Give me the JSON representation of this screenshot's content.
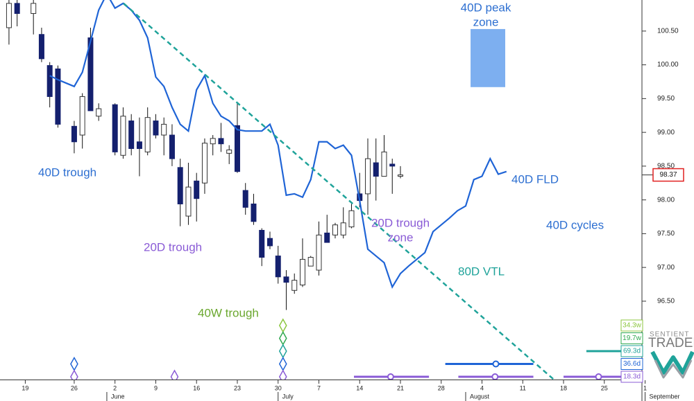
{
  "chart_data": {
    "type": "candlestick",
    "x": [
      0,
      1,
      3,
      4,
      5,
      6,
      8,
      9,
      10,
      11,
      13,
      14,
      15,
      16,
      17,
      18,
      19,
      20,
      21,
      22,
      23,
      24,
      25,
      26,
      27,
      28,
      29,
      30,
      31,
      32,
      33,
      34,
      35,
      36,
      37,
      38,
      39,
      40,
      41,
      42,
      43,
      44,
      45,
      46,
      47,
      48
    ],
    "open": [
      100.55,
      100.91,
      100.76,
      100.45,
      99.99,
      99.94,
      99.09,
      98.96,
      100.4,
      99.24,
      99.41,
      98.66,
      99.17,
      98.86,
      98.71,
      99.17,
      98.96,
      98.96,
      98.48,
      97.76,
      98.28,
      98.25,
      98.83,
      98.91,
      98.69,
      99.1,
      98.14,
      97.94,
      97.55,
      97.43,
      97.17,
      96.86,
      96.66,
      96.74,
      97.02,
      96.96,
      97.51,
      97.48,
      97.48,
      97.6,
      98.09,
      98.09,
      98.55,
      98.35,
      98.53,
      98.35
    ],
    "high": [
      100.96,
      100.96,
      100.96,
      100.55,
      100.04,
      99.99,
      99.17,
      99.58,
      100.55,
      99.43,
      99.43,
      99.37,
      99.27,
      99.22,
      99.37,
      99.27,
      99.22,
      99.12,
      98.61,
      98.55,
      98.4,
      98.91,
      98.96,
      99.14,
      98.81,
      99.43,
      98.25,
      98.09,
      97.58,
      97.53,
      97.32,
      96.96,
      96.91,
      97.43,
      97.17,
      97.68,
      97.78,
      97.66,
      97.89,
      97.94,
      98.4,
      98.91,
      98.91,
      98.96,
      98.61,
      98.5
    ],
    "low": [
      100.3,
      100.57,
      100.45,
      100.04,
      99.37,
      99.07,
      98.69,
      98.76,
      99.32,
      99.17,
      98.66,
      98.61,
      98.66,
      98.35,
      98.66,
      98.91,
      98.66,
      98.5,
      97.61,
      97.63,
      97.68,
      98.09,
      98.66,
      98.71,
      98.53,
      98.4,
      97.78,
      97.63,
      97.02,
      97.27,
      96.76,
      96.37,
      96.61,
      96.71,
      97.02,
      96.88,
      97.37,
      97.43,
      97.43,
      97.58,
      97.89,
      97.78,
      97.99,
      98.35,
      98.09,
      98.32
    ],
    "close": [
      100.91,
      100.76,
      100.91,
      100.09,
      99.53,
      99.12,
      98.86,
      99.53,
      99.32,
      99.35,
      98.71,
      99.24,
      98.76,
      98.76,
      99.22,
      98.96,
      99.12,
      98.61,
      97.94,
      98.19,
      98.02,
      98.84,
      98.91,
      98.83,
      98.74,
      98.42,
      97.89,
      97.68,
      97.15,
      97.32,
      96.86,
      96.78,
      96.81,
      97.12,
      97.15,
      97.48,
      97.37,
      97.63,
      97.66,
      97.84,
      97.99,
      98.61,
      98.35,
      98.71,
      98.5,
      98.37
    ],
    "up_color": "#ffffff",
    "down_color": "#14206e",
    "xlim": [
      -1.1,
      78.04
    ],
    "ylim": [
      95.34,
      100.96
    ],
    "yticks": [
      {
        "value": 96.5,
        "label": "96.50"
      },
      {
        "value": 97,
        "label": "97.00"
      },
      {
        "value": 97.5,
        "label": "97.50"
      },
      {
        "value": 98,
        "label": "98.00"
      },
      {
        "value": 98.5,
        "label": "98.50"
      },
      {
        "value": 99,
        "label": "99.00"
      },
      {
        "value": 99.5,
        "label": "99.50"
      },
      {
        "value": 100,
        "label": "100.00"
      },
      {
        "value": 100.5,
        "label": "100.50"
      }
    ],
    "xticks": [
      {
        "value": 2,
        "label": "19"
      },
      {
        "value": 8,
        "label": "26"
      },
      {
        "value": 13,
        "label": "2"
      },
      {
        "value": 18,
        "label": "9"
      },
      {
        "value": 23,
        "label": "16"
      },
      {
        "value": 28,
        "label": "23"
      },
      {
        "value": 33,
        "label": "30"
      },
      {
        "value": 38,
        "label": "7"
      },
      {
        "value": 43,
        "label": "14"
      },
      {
        "value": 48,
        "label": "21"
      },
      {
        "value": 53,
        "label": "28"
      },
      {
        "value": 58,
        "label": "4"
      },
      {
        "value": 63,
        "label": "11"
      },
      {
        "value": 68,
        "label": "18"
      },
      {
        "value": 73,
        "label": "25"
      },
      {
        "value": 78,
        "label": "1"
      }
    ],
    "month_ticks": [
      {
        "value": 12,
        "label": "June"
      },
      {
        "value": 33,
        "label": "July"
      },
      {
        "value": 56,
        "label": "August"
      },
      {
        "value": 78,
        "label": "September"
      }
    ],
    "grid": false,
    "last_price": 98.37,
    "last_price_color": "#e02020",
    "lines": [
      {
        "color": "#1f64d6",
        "dash": false,
        "x": [
          5,
          6,
          7,
          8,
          9,
          10,
          11,
          12,
          13,
          14,
          15,
          16,
          17,
          18,
          19,
          20,
          21,
          22,
          23,
          24,
          25,
          26,
          27,
          28,
          29,
          30,
          31,
          32,
          33,
          34,
          35,
          36,
          37,
          38,
          39,
          40,
          41,
          42,
          43,
          44,
          45,
          46,
          47,
          48,
          49,
          50,
          51,
          52,
          53,
          54,
          55,
          56,
          57,
          58,
          59,
          60,
          61
        ],
        "values": [
          99.84,
          99.78,
          99.73,
          99.68,
          99.89,
          100.35,
          100.81,
          101.05,
          100.84,
          100.91,
          100.81,
          100.66,
          100.4,
          99.82,
          99.68,
          99.37,
          99.12,
          99.02,
          99.63,
          99.84,
          99.43,
          99.24,
          99.17,
          99.04,
          99.02,
          99.02,
          99.02,
          99.12,
          98.81,
          98.07,
          98.09,
          98.04,
          98.3,
          98.86,
          98.86,
          98.76,
          98.81,
          98.66,
          97.99,
          97.27,
          97.17,
          97.07,
          96.71,
          96.91,
          97.02,
          97.12,
          97.22,
          97.53,
          97.63,
          97.73,
          97.84,
          97.91,
          98.3,
          98.35,
          98.61,
          98.38,
          98.42
        ]
      },
      {
        "color": "#1fa39a",
        "dash": true,
        "x": [
          14.05,
          67
        ],
        "values": [
          100.91,
          95.32
        ]
      }
    ],
    "zone": {
      "color": "#6fa6ee",
      "x": [
        56.6,
        60.85
      ],
      "values": [
        99.67,
        100.53
      ]
    },
    "annotations": [
      {
        "lines": [
          "40D trough"
        ],
        "color": "#2d6fd1"
      },
      {
        "lines": [
          "20D trough"
        ],
        "color": "#8a5bd6"
      },
      {
        "lines": [
          "40W trough"
        ],
        "color": "#6aa72e"
      },
      {
        "lines": [
          "40D peak",
          "zone"
        ],
        "color": "#2d6fd1"
      },
      {
        "lines": [
          "20D trough",
          "zone"
        ],
        "color": "#8a5bd6"
      },
      {
        "lines": [
          "40D FLD"
        ],
        "color": "#2d6fd1"
      },
      {
        "lines": [
          "40D cycles"
        ],
        "color": "#2d6fd1"
      },
      {
        "lines": [
          "80D VTL"
        ],
        "color": "#1fa39a"
      }
    ],
    "cycle_labels": [
      {
        "label": "34.3w",
        "color": "#8cc63f"
      },
      {
        "label": "19.7w",
        "color": "#2fa84f"
      },
      {
        "label": "69.3d",
        "color": "#1fa39a"
      },
      {
        "label": "36.6d",
        "color": "#1f64d6"
      },
      {
        "label": "18.3d",
        "color": "#8a5bd6"
      }
    ],
    "trough_markers": [
      {
        "x": 8,
        "cycles": [
          3,
          4
        ]
      },
      {
        "x": 20.3,
        "cycles": [
          4
        ]
      },
      {
        "x": 33.6,
        "cycles": [
          0,
          1,
          2,
          3,
          4
        ]
      }
    ],
    "projections": [
      {
        "cycle": 4,
        "x": [
          42.3,
          51.5
        ],
        "center": 46.8
      },
      {
        "cycle": 4,
        "x": [
          55.1,
          64.3
        ],
        "center": 59.6
      },
      {
        "cycle": 4,
        "x": [
          68,
          76.8
        ],
        "center": 72.3
      },
      {
        "cycle": 3,
        "x": [
          53.5,
          64.3
        ],
        "center": 59.7
      },
      {
        "cycle": 2,
        "x": [
          70.8,
          77.6
        ]
      }
    ],
    "brand": [
      "SENTIENT",
      "TRADER"
    ]
  }
}
